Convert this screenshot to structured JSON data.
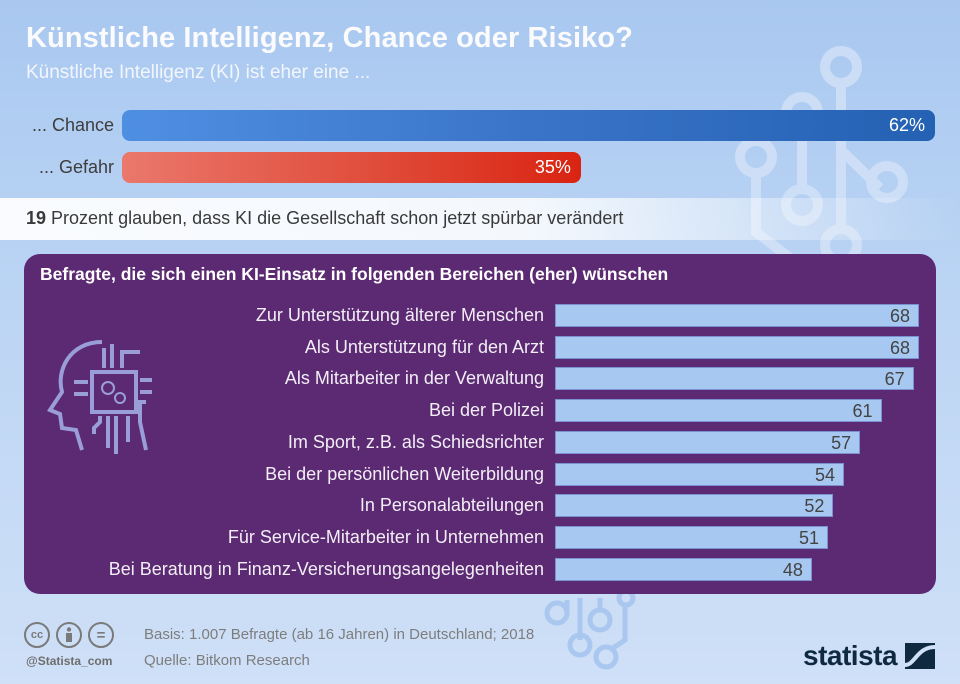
{
  "header": {
    "title": "Künstliche Intelligenz, Chance oder Risiko?",
    "subtitle": "Künstliche Intelligenz (KI) ist eher eine ..."
  },
  "top_chart": {
    "rows": [
      {
        "label": "... Chance",
        "value": 62,
        "value_label": "62%",
        "color": "#2e6bbf"
      },
      {
        "label": "... Gefahr",
        "value": 35,
        "value_label": "35%",
        "color": "#de3a26"
      }
    ]
  },
  "stat_strip": {
    "number": "19",
    "text": " Prozent glauben, dass KI die Gesellschaft schon jetzt spürbar verändert"
  },
  "panel": {
    "title": "Befragte, die sich einen KI-Einsatz in folgenden Bereichen (eher) wünschen",
    "background": "#5c2a72",
    "bar_color": "#a7c8f1"
  },
  "chart_data": [
    {
      "type": "bar",
      "orientation": "horizontal",
      "title": "Künstliche Intelligenz (KI) ist eher eine ...",
      "categories": [
        "... Chance",
        "... Gefahr"
      ],
      "values": [
        62,
        35
      ],
      "unit": "%",
      "xlim": [
        0,
        100
      ]
    },
    {
      "type": "bar",
      "orientation": "horizontal",
      "title": "Befragte, die sich einen KI-Einsatz in folgenden Bereichen (eher) wünschen",
      "categories": [
        "Zur Unterstützung älterer Menschen",
        "Als Unterstützung für den Arzt",
        "Als Mitarbeiter in der Verwaltung",
        "Bei der Polizei",
        "Im Sport, z.B. als Schiedsrichter",
        "Bei der persönlichen Weiterbildung",
        "In Personalabteilungen",
        "Für Service-Mitarbeiter in Unternehmen",
        "Bei Beratung in Finanz-Versicherungsangelegenheiten"
      ],
      "values": [
        68,
        68,
        67,
        61,
        57,
        54,
        52,
        51,
        48
      ],
      "unit": "%",
      "xlim": [
        0,
        68
      ]
    }
  ],
  "footer": {
    "handle": "@Statista_com",
    "basis": "Basis: 1.007 Befragte (ab 16 Jahren) in Deutschland; 2018",
    "source": "Quelle: Bitkom Research",
    "license_icons": [
      "cc-icon",
      "by-icon",
      "nd-icon"
    ],
    "cc_label": "cc",
    "nd_label": "=",
    "brand": "statista"
  }
}
